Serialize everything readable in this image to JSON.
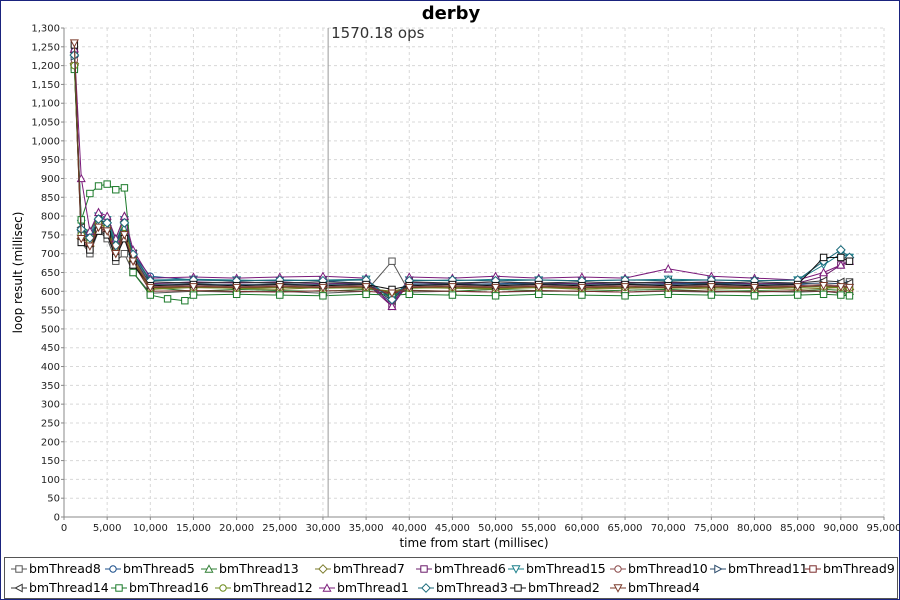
{
  "chart_data": {
    "type": "line",
    "title": "derby",
    "annotation": "1570.18 ops",
    "annotation_x": 30600,
    "xlabel": "time from start (millisec)",
    "ylabel": "loop result (millisec)",
    "xlim": [
      0,
      95000
    ],
    "ylim": [
      0,
      1300
    ],
    "x_ticks": [
      0,
      5000,
      10000,
      15000,
      20000,
      25000,
      30000,
      35000,
      40000,
      45000,
      50000,
      55000,
      60000,
      65000,
      70000,
      75000,
      80000,
      85000,
      90000,
      95000
    ],
    "x_tick_labels": [
      "0",
      "5,000",
      "10,000",
      "15,000",
      "20,000",
      "25,000",
      "30,000",
      "35,000",
      "40,000",
      "45,000",
      "50,000",
      "55,000",
      "60,000",
      "65,000",
      "70,000",
      "75,000",
      "80,000",
      "85,000",
      "90,000",
      "95,000"
    ],
    "y_ticks": [
      0,
      50,
      100,
      150,
      200,
      250,
      300,
      350,
      400,
      450,
      500,
      550,
      600,
      650,
      700,
      750,
      800,
      850,
      900,
      950,
      1000,
      1050,
      1100,
      1150,
      1200,
      1250,
      1300
    ],
    "y_tick_labels": [
      "0",
      "50",
      "100",
      "150",
      "200",
      "250",
      "300",
      "350",
      "400",
      "450",
      "500",
      "550",
      "600",
      "650",
      "700",
      "750",
      "800",
      "850",
      "900",
      "950",
      "1,000",
      "1,050",
      "1,100",
      "1,150",
      "1,200",
      "1,250",
      "1,300"
    ],
    "grid": true,
    "legend_position": "bottom",
    "series": [
      {
        "name": "bmThread8",
        "marker": "square",
        "color": "#555555",
        "x": [
          1200,
          2000,
          3000,
          4000,
          5000,
          6000,
          7000,
          8000,
          10000,
          15000,
          20000,
          25000,
          30000,
          35000,
          38000,
          40000,
          45000,
          50000,
          55000,
          60000,
          65000,
          70000,
          75000,
          80000,
          85000,
          88000,
          90000,
          91000
        ],
        "y": [
          1200,
          730,
          700,
          760,
          740,
          680,
          700,
          650,
          595,
          600,
          598,
          600,
          595,
          600,
          680,
          598,
          600,
          598,
          600,
          600,
          598,
          600,
          598,
          600,
          598,
          600,
          595,
          625
        ]
      },
      {
        "name": "bmThread5",
        "marker": "circle",
        "color": "#1a4e8a",
        "x": [
          1200,
          2000,
          3000,
          4000,
          5000,
          6000,
          7000,
          8000,
          10000,
          15000,
          20000,
          25000,
          30000,
          35000,
          38000,
          40000,
          45000,
          50000,
          55000,
          60000,
          65000,
          70000,
          75000,
          80000,
          85000,
          88000,
          90000,
          91000
        ],
        "y": [
          1240,
          760,
          740,
          790,
          780,
          720,
          770,
          700,
          640,
          630,
          628,
          630,
          628,
          620,
          570,
          620,
          618,
          620,
          622,
          620,
          618,
          620,
          622,
          620,
          618,
          615,
          612,
          610
        ]
      },
      {
        "name": "bmThread13",
        "marker": "triangle-up",
        "color": "#2e7d32",
        "x": [
          1200,
          2000,
          3000,
          4000,
          5000,
          6000,
          7000,
          8000,
          10000,
          15000,
          20000,
          25000,
          30000,
          35000,
          38000,
          40000,
          45000,
          50000,
          55000,
          60000,
          65000,
          70000,
          75000,
          80000,
          85000,
          88000,
          90000,
          91000
        ],
        "y": [
          1210,
          770,
          760,
          800,
          790,
          740,
          800,
          670,
          610,
          600,
          605,
          602,
          600,
          605,
          600,
          603,
          600,
          605,
          602,
          600,
          603,
          605,
          600,
          602,
          600,
          605,
          603,
          600
        ]
      },
      {
        "name": "bmThread7",
        "marker": "diamond",
        "color": "#7a7a2a",
        "x": [
          1200,
          2000,
          3000,
          4000,
          5000,
          6000,
          7000,
          8000,
          10000,
          15000,
          20000,
          25000,
          30000,
          35000,
          38000,
          40000,
          45000,
          50000,
          55000,
          60000,
          65000,
          70000,
          75000,
          80000,
          85000,
          88000,
          90000,
          91000
        ],
        "y": [
          1205,
          740,
          720,
          780,
          770,
          710,
          750,
          680,
          605,
          610,
          608,
          605,
          610,
          608,
          600,
          610,
          608,
          606,
          610,
          605,
          608,
          610,
          606,
          608,
          605,
          608,
          610,
          605
        ]
      },
      {
        "name": "bmThread6",
        "marker": "square",
        "color": "#6a1b6a",
        "x": [
          1200,
          2000,
          3000,
          4000,
          5000,
          6000,
          7000,
          8000,
          10000,
          15000,
          20000,
          25000,
          30000,
          35000,
          38000,
          40000,
          45000,
          50000,
          55000,
          60000,
          65000,
          70000,
          75000,
          80000,
          85000,
          88000,
          90000,
          91000
        ],
        "y": [
          1230,
          750,
          730,
          770,
          760,
          700,
          780,
          690,
          620,
          625,
          622,
          625,
          620,
          622,
          560,
          624,
          620,
          625,
          622,
          620,
          624,
          622,
          625,
          620,
          622,
          640,
          670,
          680
        ]
      },
      {
        "name": "bmThread15",
        "marker": "triangle-down",
        "color": "#1a7f8a",
        "x": [
          1200,
          2000,
          3000,
          4000,
          5000,
          6000,
          7000,
          8000,
          10000,
          15000,
          20000,
          25000,
          30000,
          35000,
          38000,
          40000,
          45000,
          50000,
          55000,
          60000,
          65000,
          70000,
          75000,
          80000,
          85000,
          88000,
          90000,
          91000
        ],
        "y": [
          1220,
          780,
          750,
          800,
          790,
          730,
          790,
          700,
          630,
          632,
          630,
          628,
          630,
          632,
          580,
          630,
          628,
          632,
          630,
          628,
          630,
          632,
          630,
          628,
          630,
          670,
          700,
          690
        ]
      },
      {
        "name": "bmThread10",
        "marker": "circle",
        "color": "#8a4a4a",
        "x": [
          1200,
          2000,
          3000,
          4000,
          5000,
          6000,
          7000,
          8000,
          10000,
          15000,
          20000,
          25000,
          30000,
          35000,
          38000,
          40000,
          45000,
          50000,
          55000,
          60000,
          65000,
          70000,
          75000,
          80000,
          85000,
          88000,
          90000,
          91000
        ],
        "y": [
          1215,
          745,
          725,
          775,
          765,
          705,
          760,
          690,
          612,
          615,
          612,
          615,
          612,
          615,
          590,
          612,
          615,
          612,
          615,
          612,
          615,
          612,
          615,
          612,
          615,
          618,
          615,
          612
        ]
      },
      {
        "name": "bmThread11",
        "marker": "triangle-right",
        "color": "#2a4a6a",
        "x": [
          1200,
          2000,
          3000,
          4000,
          5000,
          6000,
          7000,
          8000,
          10000,
          15000,
          20000,
          25000,
          30000,
          35000,
          38000,
          40000,
          45000,
          50000,
          55000,
          60000,
          65000,
          70000,
          75000,
          80000,
          85000,
          88000,
          90000,
          91000
        ],
        "y": [
          1225,
          755,
          735,
          785,
          775,
          715,
          775,
          695,
          618,
          620,
          618,
          620,
          618,
          620,
          585,
          618,
          620,
          618,
          620,
          618,
          620,
          618,
          620,
          618,
          620,
          622,
          620,
          618
        ]
      },
      {
        "name": "bmThread9",
        "marker": "square",
        "color": "#7a2a2a",
        "x": [
          1200,
          2000,
          3000,
          4000,
          5000,
          6000,
          7000,
          8000,
          10000,
          15000,
          20000,
          25000,
          30000,
          35000,
          38000,
          40000,
          45000,
          50000,
          55000,
          60000,
          65000,
          70000,
          75000,
          80000,
          85000,
          88000,
          90000,
          91000
        ],
        "y": [
          1195,
          735,
          715,
          765,
          755,
          695,
          745,
          675,
          600,
          602,
          600,
          598,
          602,
          600,
          595,
          602,
          600,
          598,
          602,
          600,
          598,
          602,
          600,
          598,
          602,
          600,
          598,
          600
        ]
      },
      {
        "name": "bmThread14",
        "marker": "triangle-left",
        "color": "#333333",
        "x": [
          1200,
          2000,
          3000,
          4000,
          5000,
          6000,
          7000,
          8000,
          10000,
          15000,
          20000,
          25000,
          30000,
          35000,
          38000,
          40000,
          45000,
          50000,
          55000,
          60000,
          65000,
          70000,
          75000,
          80000,
          85000,
          88000,
          90000,
          91000
        ],
        "y": [
          1235,
          770,
          745,
          790,
          780,
          725,
          785,
          700,
          625,
          622,
          625,
          622,
          625,
          622,
          575,
          625,
          622,
          625,
          622,
          625,
          622,
          625,
          622,
          625,
          622,
          628,
          625,
          622
        ]
      },
      {
        "name": "bmThread16",
        "marker": "square",
        "color": "#1b7a2a",
        "x": [
          1200,
          2000,
          3000,
          4000,
          5000,
          6000,
          7000,
          8000,
          10000,
          12000,
          14000,
          15000,
          20000,
          25000,
          30000,
          35000,
          38000,
          40000,
          45000,
          50000,
          55000,
          60000,
          65000,
          70000,
          75000,
          80000,
          85000,
          88000,
          90000,
          91000
        ],
        "y": [
          1190,
          790,
          860,
          880,
          885,
          870,
          875,
          650,
          590,
          580,
          575,
          590,
          592,
          590,
          588,
          592,
          590,
          592,
          590,
          588,
          592,
          590,
          588,
          592,
          590,
          588,
          590,
          592,
          590,
          588
        ]
      },
      {
        "name": "bmThread12",
        "marker": "circle",
        "color": "#6a8a1a",
        "x": [
          1200,
          2000,
          3000,
          4000,
          5000,
          6000,
          7000,
          8000,
          10000,
          15000,
          20000,
          25000,
          30000,
          35000,
          38000,
          40000,
          45000,
          50000,
          55000,
          60000,
          65000,
          70000,
          75000,
          80000,
          85000,
          88000,
          90000,
          91000
        ],
        "y": [
          1200,
          750,
          730,
          780,
          770,
          710,
          770,
          685,
          608,
          610,
          608,
          610,
          608,
          610,
          598,
          608,
          610,
          608,
          610,
          608,
          610,
          608,
          610,
          608,
          610,
          612,
          610,
          608
        ]
      },
      {
        "name": "bmThread1",
        "marker": "triangle-up",
        "color": "#7a1a7a",
        "x": [
          1200,
          2000,
          3000,
          4000,
          5000,
          6000,
          7000,
          8000,
          10000,
          15000,
          20000,
          25000,
          30000,
          35000,
          38000,
          40000,
          45000,
          50000,
          55000,
          60000,
          65000,
          70000,
          75000,
          80000,
          85000,
          88000,
          90000,
          91000
        ],
        "y": [
          1245,
          900,
          760,
          810,
          800,
          740,
          800,
          710,
          635,
          638,
          635,
          638,
          640,
          635,
          560,
          638,
          635,
          640,
          635,
          638,
          635,
          660,
          640,
          635,
          630,
          650,
          670,
          680
        ]
      },
      {
        "name": "bmThread3",
        "marker": "diamond",
        "color": "#1a6a7a",
        "x": [
          1200,
          2000,
          3000,
          4000,
          5000,
          6000,
          7000,
          8000,
          10000,
          15000,
          20000,
          25000,
          30000,
          35000,
          38000,
          40000,
          45000,
          50000,
          55000,
          60000,
          65000,
          70000,
          75000,
          80000,
          85000,
          88000,
          90000,
          91000
        ],
        "y": [
          1228,
          765,
          742,
          792,
          782,
          722,
          782,
          698,
          628,
          630,
          628,
          630,
          628,
          630,
          578,
          628,
          630,
          628,
          630,
          628,
          630,
          628,
          630,
          628,
          630,
          680,
          710,
          690
        ]
      },
      {
        "name": "bmThread2",
        "marker": "square",
        "color": "#111111",
        "x": [
          1200,
          2000,
          3000,
          4000,
          5000,
          6000,
          7000,
          8000,
          10000,
          15000,
          20000,
          25000,
          30000,
          35000,
          38000,
          40000,
          45000,
          50000,
          55000,
          60000,
          65000,
          70000,
          75000,
          80000,
          85000,
          88000,
          90000,
          91000
        ],
        "y": [
          1255,
          730,
          710,
          760,
          750,
          690,
          740,
          670,
          615,
          618,
          615,
          618,
          615,
          618,
          605,
          615,
          618,
          615,
          618,
          615,
          618,
          615,
          618,
          615,
          618,
          690,
          690,
          680
        ]
      },
      {
        "name": "bmThread4",
        "marker": "triangle-down",
        "color": "#7a3a2a",
        "x": [
          1200,
          2000,
          3000,
          4000,
          5000,
          6000,
          7000,
          8000,
          10000,
          15000,
          20000,
          25000,
          30000,
          35000,
          38000,
          40000,
          45000,
          50000,
          55000,
          60000,
          65000,
          70000,
          75000,
          80000,
          85000,
          88000,
          90000,
          91000
        ],
        "y": [
          1260,
          740,
          720,
          770,
          760,
          700,
          750,
          680,
          610,
          612,
          610,
          612,
          610,
          612,
          595,
          610,
          612,
          610,
          612,
          610,
          612,
          610,
          612,
          610,
          612,
          615,
          612,
          610
        ]
      }
    ]
  }
}
